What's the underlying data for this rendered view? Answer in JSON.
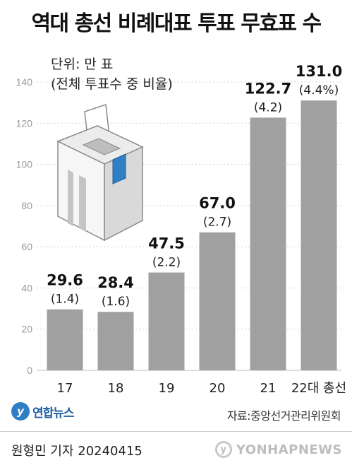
{
  "chart_data": {
    "type": "bar",
    "title": "역대 총선 비례대표 투표 무효표 수",
    "unit_label": "단위: 만 표",
    "note": "(전체 투표수 중 비율)",
    "categories": [
      "17",
      "18",
      "19",
      "20",
      "21",
      "22대 총선"
    ],
    "values": [
      29.6,
      28.4,
      47.5,
      67.0,
      122.7,
      131.0
    ],
    "value_labels": [
      "29.6",
      "28.4",
      "47.5",
      "67.0",
      "122.7",
      "131.0"
    ],
    "ratio_labels": [
      "(1.4)",
      "(1.6)",
      "(2.2)",
      "(2.7)",
      "(4.2)",
      "(4.4%)"
    ],
    "yticks": [
      0,
      20,
      40,
      60,
      80,
      100,
      120,
      140
    ],
    "ylim": [
      0,
      140
    ],
    "grid": true,
    "bar_color": "#a0a0a0"
  },
  "source": "자료:중앙선거관리위원회",
  "logo_text": "연합뉴스",
  "credit": "원형민 기자  20240415",
  "watermark": "YONHAPNEWS"
}
